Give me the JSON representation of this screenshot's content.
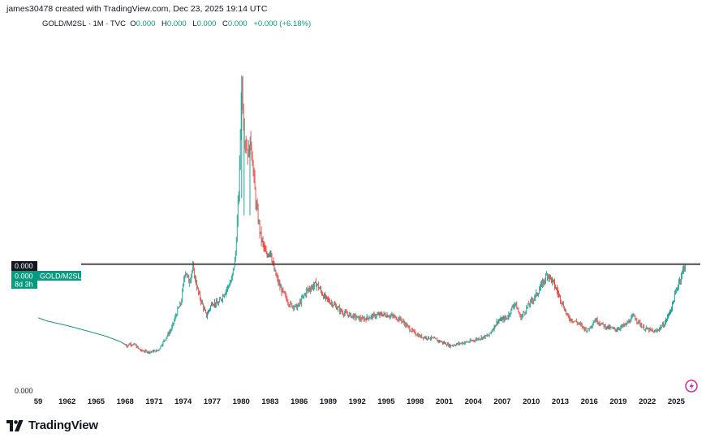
{
  "credit": "james30478 created with TradingView.com, Dec 23, 2025 19:14 UTC",
  "legend": {
    "symbol": "GOLD/M2SL · 1M · TVC",
    "o_label": "O",
    "o_val": "0.000",
    "h_label": "H",
    "h_val": "0.000",
    "l_label": "L",
    "l_val": "0.000",
    "c_label": "C",
    "c_val": "0.000",
    "change": "+0.000 (+6.18%)"
  },
  "price_axis": {
    "bottom_label": "0.000",
    "crosshair_label": "0.000",
    "last_value_label": "0.000",
    "series_tag": "GOLD/M2SL",
    "countdown": "8d 3h"
  },
  "brand": {
    "name": "TradingView"
  },
  "colors": {
    "up": "#26a69a",
    "down": "#ef5350",
    "line": "#1b8a78",
    "resistance": "#4a4a4a",
    "tag_bg": "#089981",
    "crosshair_bg": "#131722",
    "flash_icon": "#cc2f9b"
  },
  "chart_data": {
    "type": "line",
    "title": "GOLD/M2SL · 1M · TVC",
    "xlabel": "",
    "ylabel": "",
    "x_ticks": [
      "59",
      "1962",
      "1965",
      "1968",
      "1971",
      "1974",
      "1977",
      "1980",
      "1983",
      "1986",
      "1989",
      "1992",
      "1995",
      "1998",
      "2001",
      "2004",
      "2007",
      "2010",
      "2013",
      "2016",
      "2019",
      "2022",
      "2025"
    ],
    "x_range": [
      1959,
      2025.97
    ],
    "y_range": [
      0,
      1.0
    ],
    "y_scale_note": "values are shown relative (price axis labels display 0.000)",
    "horizontal_line": {
      "y": 0.357,
      "label": "GOLD/M2SL"
    },
    "series": [
      {
        "values": [
          [
            1959.0,
            0.2
          ],
          [
            1960.0,
            0.19
          ],
          [
            1962.0,
            0.177
          ],
          [
            1964.0,
            0.162
          ],
          [
            1966.0,
            0.146
          ],
          [
            1967.5,
            0.13
          ],
          [
            1968.2,
            0.118
          ],
          [
            1968.5,
            0.124
          ],
          [
            1969.0,
            0.12
          ],
          [
            1969.6,
            0.104
          ],
          [
            1970.5,
            0.1
          ],
          [
            1971.4,
            0.104
          ],
          [
            1972.0,
            0.132
          ],
          [
            1972.8,
            0.168
          ],
          [
            1973.4,
            0.22
          ],
          [
            1973.8,
            0.245
          ],
          [
            1974.2,
            0.34
          ],
          [
            1974.6,
            0.305
          ],
          [
            1975.0,
            0.345
          ],
          [
            1975.6,
            0.27
          ],
          [
            1976.4,
            0.205
          ],
          [
            1977.0,
            0.245
          ],
          [
            1977.6,
            0.24
          ],
          [
            1978.4,
            0.28
          ],
          [
            1979.0,
            0.31
          ],
          [
            1979.4,
            0.38
          ],
          [
            1979.8,
            0.6
          ],
          [
            1980.05,
            0.91
          ],
          [
            1980.3,
            0.74
          ],
          [
            1980.7,
            0.68
          ],
          [
            1981.0,
            0.72
          ],
          [
            1981.5,
            0.54
          ],
          [
            1982.0,
            0.44
          ],
          [
            1982.6,
            0.38
          ],
          [
            1983.0,
            0.4
          ],
          [
            1983.4,
            0.34
          ],
          [
            1984.0,
            0.29
          ],
          [
            1985.0,
            0.24
          ],
          [
            1985.8,
            0.23
          ],
          [
            1986.8,
            0.28
          ],
          [
            1987.8,
            0.3
          ],
          [
            1988.6,
            0.26
          ],
          [
            1989.5,
            0.24
          ],
          [
            1990.5,
            0.215
          ],
          [
            1991.5,
            0.205
          ],
          [
            1992.5,
            0.195
          ],
          [
            1993.6,
            0.205
          ],
          [
            1994.6,
            0.21
          ],
          [
            1995.6,
            0.205
          ],
          [
            1996.5,
            0.195
          ],
          [
            1997.5,
            0.165
          ],
          [
            1998.5,
            0.145
          ],
          [
            1999.7,
            0.14
          ],
          [
            2000.8,
            0.128
          ],
          [
            2001.6,
            0.118
          ],
          [
            2002.6,
            0.125
          ],
          [
            2003.6,
            0.13
          ],
          [
            2004.6,
            0.14
          ],
          [
            2005.6,
            0.148
          ],
          [
            2006.5,
            0.19
          ],
          [
            2007.5,
            0.2
          ],
          [
            2008.3,
            0.245
          ],
          [
            2008.9,
            0.2
          ],
          [
            2009.8,
            0.24
          ],
          [
            2010.7,
            0.275
          ],
          [
            2011.7,
            0.33
          ],
          [
            2012.4,
            0.295
          ],
          [
            2013.1,
            0.25
          ],
          [
            2013.8,
            0.2
          ],
          [
            2014.8,
            0.185
          ],
          [
            2015.8,
            0.162
          ],
          [
            2016.6,
            0.195
          ],
          [
            2017.6,
            0.175
          ],
          [
            2018.7,
            0.165
          ],
          [
            2019.8,
            0.18
          ],
          [
            2020.6,
            0.205
          ],
          [
            2021.6,
            0.17
          ],
          [
            2022.8,
            0.158
          ],
          [
            2023.8,
            0.183
          ],
          [
            2024.5,
            0.23
          ],
          [
            2025.2,
            0.3
          ],
          [
            2025.9,
            0.357
          ]
        ]
      }
    ],
    "annotations": [
      "GOLD/M2SL",
      "8d 3h"
    ]
  }
}
